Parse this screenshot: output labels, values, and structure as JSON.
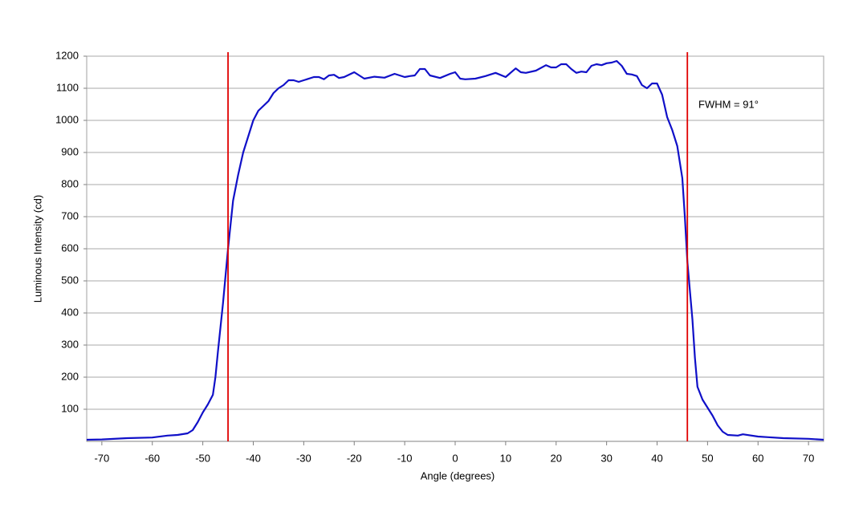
{
  "chart_data": {
    "type": "line",
    "x_label": "Angle (degrees)",
    "y_label": "Luminous Intensity (cd)",
    "annotation": "FWHM = 91°",
    "xlim": [
      -73,
      73
    ],
    "ylim": [
      0,
      1200
    ],
    "xticks": [
      -70,
      -60,
      -50,
      -40,
      -30,
      -20,
      -10,
      0,
      10,
      20,
      30,
      40,
      50,
      60,
      70
    ],
    "yticks": [
      100,
      200,
      300,
      400,
      500,
      600,
      700,
      800,
      900,
      1000,
      1100,
      1200
    ],
    "grid": true,
    "vlines": [
      {
        "x": -45,
        "color": "#e00000"
      },
      {
        "x": 46,
        "color": "#e00000"
      }
    ],
    "x": [
      -73,
      -70,
      -65,
      -60,
      -57,
      -55,
      -53,
      -52,
      -51,
      -50,
      -49,
      -48,
      -47.5,
      -47,
      -46,
      -45,
      -44,
      -43,
      -42,
      -41,
      -40,
      -39,
      -38,
      -37,
      -36,
      -35,
      -34,
      -33,
      -32,
      -31,
      -30,
      -28,
      -27,
      -26,
      -25,
      -24,
      -23,
      -22,
      -20,
      -18,
      -16,
      -14,
      -12,
      -11,
      -10,
      -9,
      -8,
      -7,
      -6,
      -5,
      -3,
      -1,
      0,
      1,
      2,
      4,
      6,
      8,
      10,
      12,
      13,
      14,
      16,
      18,
      19,
      20,
      21,
      22,
      23,
      24,
      25,
      26,
      27,
      28,
      29,
      30,
      31,
      32,
      33,
      34,
      35,
      36,
      37,
      38,
      39,
      40,
      41,
      42,
      43,
      44,
      45,
      45.5,
      46,
      47,
      47.5,
      48,
      49,
      50,
      51,
      52,
      53,
      54,
      56,
      57,
      60,
      62,
      65,
      70,
      73
    ],
    "series": [
      {
        "color": "#1010c8",
        "values": [
          5,
          6,
          10,
          12,
          18,
          20,
          25,
          35,
          60,
          90,
          115,
          145,
          200,
          280,
          430,
          600,
          750,
          830,
          900,
          950,
          1000,
          1030,
          1045,
          1060,
          1085,
          1100,
          1110,
          1125,
          1125,
          1120,
          1125,
          1135,
          1135,
          1128,
          1140,
          1142,
          1132,
          1135,
          1150,
          1130,
          1136,
          1133,
          1145,
          1140,
          1135,
          1138,
          1140,
          1160,
          1160,
          1140,
          1132,
          1145,
          1150,
          1130,
          1128,
          1130,
          1138,
          1148,
          1135,
          1162,
          1150,
          1148,
          1155,
          1172,
          1165,
          1165,
          1175,
          1175,
          1160,
          1148,
          1152,
          1150,
          1170,
          1175,
          1172,
          1178,
          1180,
          1185,
          1170,
          1145,
          1143,
          1138,
          1110,
          1100,
          1115,
          1115,
          1080,
          1010,
          970,
          920,
          820,
          700,
          560,
          380,
          260,
          170,
          130,
          105,
          80,
          50,
          30,
          20,
          18,
          22,
          15,
          13,
          10,
          8,
          5
        ]
      }
    ]
  }
}
